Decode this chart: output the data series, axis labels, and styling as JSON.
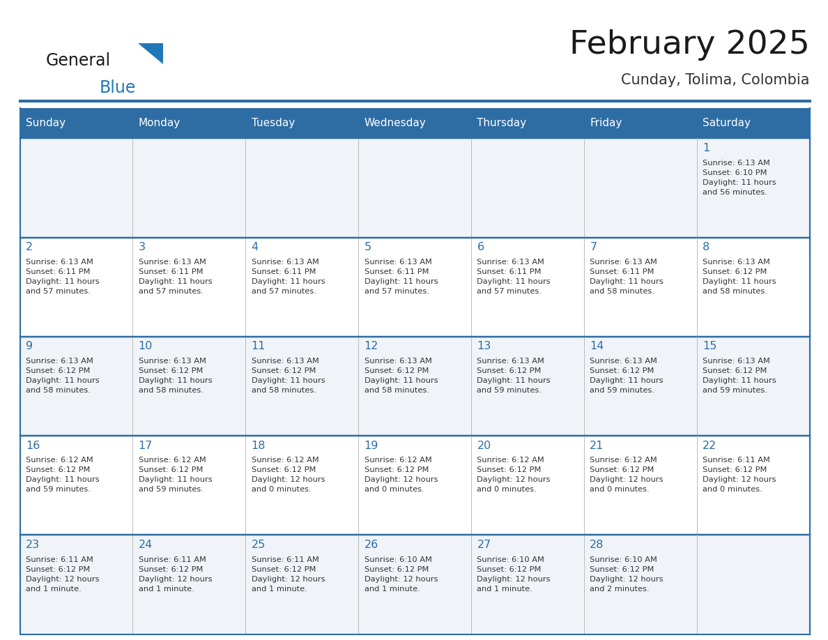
{
  "title": "February 2025",
  "subtitle": "Cunday, Tolima, Colombia",
  "header_color": "#2e6da4",
  "header_text_color": "#ffffff",
  "border_color": "#2e6da4",
  "cell_bg_light": "#f0f4f8",
  "cell_bg_white": "#ffffff",
  "day_headers": [
    "Sunday",
    "Monday",
    "Tuesday",
    "Wednesday",
    "Thursday",
    "Friday",
    "Saturday"
  ],
  "title_color": "#1a1a1a",
  "subtitle_color": "#333333",
  "day_number_color": "#2e6da4",
  "cell_text_color": "#333333",
  "logo_black": "#1a1a1a",
  "logo_blue": "#2177b8",
  "weeks": [
    [
      {
        "day": 0,
        "text": ""
      },
      {
        "day": 0,
        "text": ""
      },
      {
        "day": 0,
        "text": ""
      },
      {
        "day": 0,
        "text": ""
      },
      {
        "day": 0,
        "text": ""
      },
      {
        "day": 0,
        "text": ""
      },
      {
        "day": 1,
        "text": "Sunrise: 6:13 AM\nSunset: 6:10 PM\nDaylight: 11 hours\nand 56 minutes."
      }
    ],
    [
      {
        "day": 2,
        "text": "Sunrise: 6:13 AM\nSunset: 6:11 PM\nDaylight: 11 hours\nand 57 minutes."
      },
      {
        "day": 3,
        "text": "Sunrise: 6:13 AM\nSunset: 6:11 PM\nDaylight: 11 hours\nand 57 minutes."
      },
      {
        "day": 4,
        "text": "Sunrise: 6:13 AM\nSunset: 6:11 PM\nDaylight: 11 hours\nand 57 minutes."
      },
      {
        "day": 5,
        "text": "Sunrise: 6:13 AM\nSunset: 6:11 PM\nDaylight: 11 hours\nand 57 minutes."
      },
      {
        "day": 6,
        "text": "Sunrise: 6:13 AM\nSunset: 6:11 PM\nDaylight: 11 hours\nand 57 minutes."
      },
      {
        "day": 7,
        "text": "Sunrise: 6:13 AM\nSunset: 6:11 PM\nDaylight: 11 hours\nand 58 minutes."
      },
      {
        "day": 8,
        "text": "Sunrise: 6:13 AM\nSunset: 6:12 PM\nDaylight: 11 hours\nand 58 minutes."
      }
    ],
    [
      {
        "day": 9,
        "text": "Sunrise: 6:13 AM\nSunset: 6:12 PM\nDaylight: 11 hours\nand 58 minutes."
      },
      {
        "day": 10,
        "text": "Sunrise: 6:13 AM\nSunset: 6:12 PM\nDaylight: 11 hours\nand 58 minutes."
      },
      {
        "day": 11,
        "text": "Sunrise: 6:13 AM\nSunset: 6:12 PM\nDaylight: 11 hours\nand 58 minutes."
      },
      {
        "day": 12,
        "text": "Sunrise: 6:13 AM\nSunset: 6:12 PM\nDaylight: 11 hours\nand 58 minutes."
      },
      {
        "day": 13,
        "text": "Sunrise: 6:13 AM\nSunset: 6:12 PM\nDaylight: 11 hours\nand 59 minutes."
      },
      {
        "day": 14,
        "text": "Sunrise: 6:13 AM\nSunset: 6:12 PM\nDaylight: 11 hours\nand 59 minutes."
      },
      {
        "day": 15,
        "text": "Sunrise: 6:13 AM\nSunset: 6:12 PM\nDaylight: 11 hours\nand 59 minutes."
      }
    ],
    [
      {
        "day": 16,
        "text": "Sunrise: 6:12 AM\nSunset: 6:12 PM\nDaylight: 11 hours\nand 59 minutes."
      },
      {
        "day": 17,
        "text": "Sunrise: 6:12 AM\nSunset: 6:12 PM\nDaylight: 11 hours\nand 59 minutes."
      },
      {
        "day": 18,
        "text": "Sunrise: 6:12 AM\nSunset: 6:12 PM\nDaylight: 12 hours\nand 0 minutes."
      },
      {
        "day": 19,
        "text": "Sunrise: 6:12 AM\nSunset: 6:12 PM\nDaylight: 12 hours\nand 0 minutes."
      },
      {
        "day": 20,
        "text": "Sunrise: 6:12 AM\nSunset: 6:12 PM\nDaylight: 12 hours\nand 0 minutes."
      },
      {
        "day": 21,
        "text": "Sunrise: 6:12 AM\nSunset: 6:12 PM\nDaylight: 12 hours\nand 0 minutes."
      },
      {
        "day": 22,
        "text": "Sunrise: 6:11 AM\nSunset: 6:12 PM\nDaylight: 12 hours\nand 0 minutes."
      }
    ],
    [
      {
        "day": 23,
        "text": "Sunrise: 6:11 AM\nSunset: 6:12 PM\nDaylight: 12 hours\nand 1 minute."
      },
      {
        "day": 24,
        "text": "Sunrise: 6:11 AM\nSunset: 6:12 PM\nDaylight: 12 hours\nand 1 minute."
      },
      {
        "day": 25,
        "text": "Sunrise: 6:11 AM\nSunset: 6:12 PM\nDaylight: 12 hours\nand 1 minute."
      },
      {
        "day": 26,
        "text": "Sunrise: 6:10 AM\nSunset: 6:12 PM\nDaylight: 12 hours\nand 1 minute."
      },
      {
        "day": 27,
        "text": "Sunrise: 6:10 AM\nSunset: 6:12 PM\nDaylight: 12 hours\nand 1 minute."
      },
      {
        "day": 28,
        "text": "Sunrise: 6:10 AM\nSunset: 6:12 PM\nDaylight: 12 hours\nand 2 minutes."
      },
      {
        "day": 0,
        "text": ""
      }
    ]
  ]
}
